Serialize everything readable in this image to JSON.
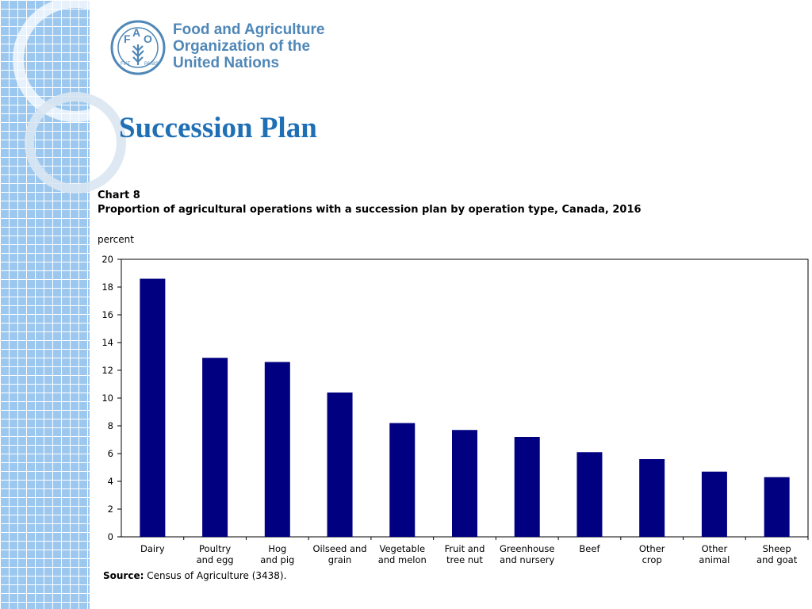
{
  "organization": {
    "logo_text": "FAO FIAT PANIS",
    "name_lines": [
      "Food and Agriculture",
      "Organization of the",
      "United Nations"
    ]
  },
  "slide": {
    "title": "Succession Plan"
  },
  "colors": {
    "bar": "#000080",
    "title": "#1f6fb5",
    "org": "#4f87b7",
    "strip": "#9cc7ee"
  },
  "chart_data": {
    "type": "bar",
    "chart_number": "Chart 8",
    "title": "Proportion of agricultural operations with a succession plan by operation type, Canada, 2016",
    "ylabel": "percent",
    "xlabel": "",
    "ylim": [
      0,
      20
    ],
    "yticks": [
      "0",
      "2",
      "4",
      "6",
      "8",
      "10",
      "12",
      "14",
      "16",
      "18",
      "20"
    ],
    "grid": false,
    "categories": [
      [
        "Dairy"
      ],
      [
        "Poultry",
        "and egg"
      ],
      [
        "Hog",
        "and pig"
      ],
      [
        "Oilseed and",
        "grain"
      ],
      [
        "Vegetable",
        "and melon"
      ],
      [
        "Fruit and",
        "tree nut"
      ],
      [
        "Greenhouse",
        "and nursery"
      ],
      [
        "Beef"
      ],
      [
        "Other",
        "crop"
      ],
      [
        "Other",
        "animal"
      ],
      [
        "Sheep",
        "and goat"
      ]
    ],
    "values": [
      18.6,
      12.9,
      12.6,
      10.4,
      8.2,
      7.7,
      7.2,
      6.1,
      5.6,
      4.7,
      4.3
    ],
    "source_label": "Source:",
    "source_text": "Census of Agriculture (3438)."
  }
}
